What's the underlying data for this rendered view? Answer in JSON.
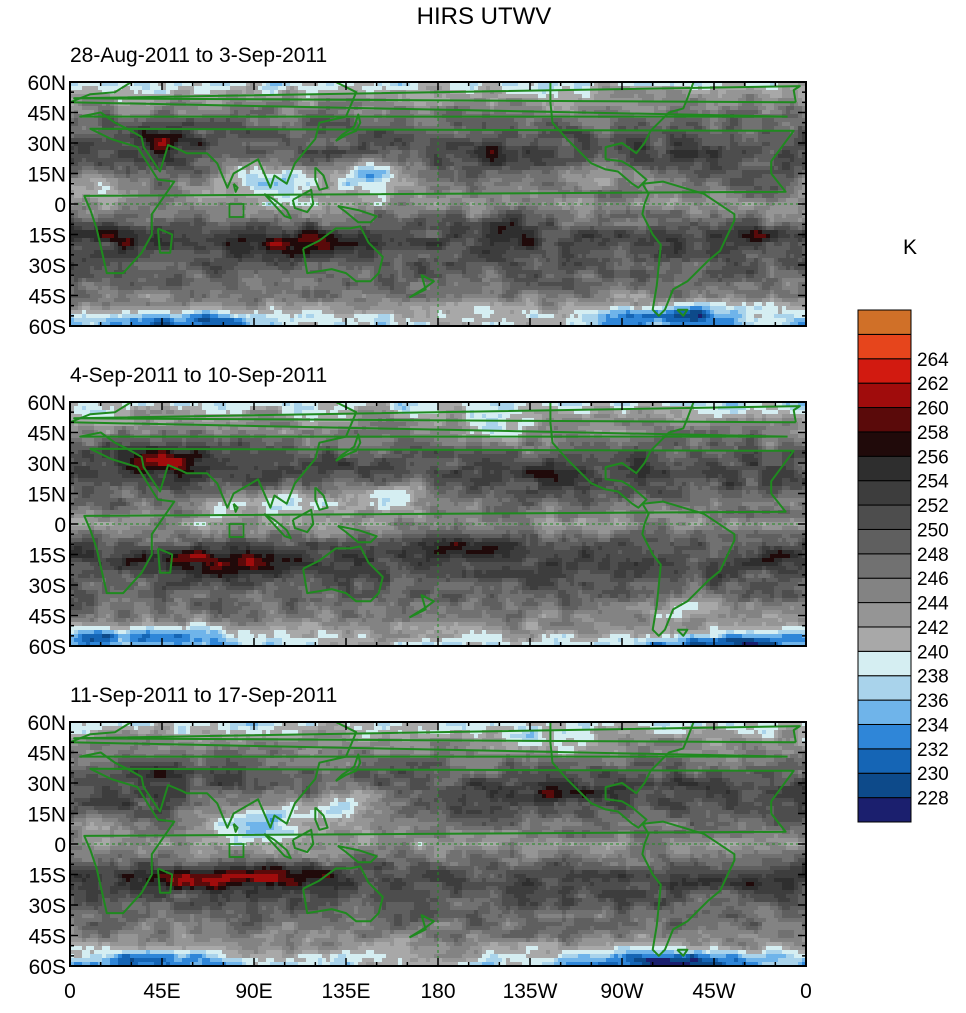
{
  "chart_data": {
    "type": "heatmap",
    "title": "HIRS UTWV",
    "colorbar": {
      "unit": "K",
      "levels": [
        228,
        230,
        232,
        234,
        236,
        238,
        240,
        242,
        244,
        246,
        248,
        250,
        252,
        254,
        256,
        258,
        260,
        262,
        264
      ],
      "colors": [
        "#1b1f6e",
        "#0d4a8a",
        "#1565b5",
        "#2f86d8",
        "#6fb4ea",
        "#a9d3eb",
        "#d5eef2",
        "#a8a8a8",
        "#959595",
        "#838383",
        "#717171",
        "#5f5f5f",
        "#4d4d4d",
        "#3d3d3d",
        "#2e2e2e",
        "#200a0a",
        "#5a0a0a",
        "#a00c0c",
        "#d21a10",
        "#e6451c",
        "#d07028"
      ]
    },
    "x_ticks": [
      "0",
      "45E",
      "90E",
      "135E",
      "180",
      "135W",
      "90W",
      "45W",
      "0"
    ],
    "y_ticks": [
      "60N",
      "45N",
      "30N",
      "15N",
      "0",
      "15S",
      "30S",
      "45S",
      "60S"
    ],
    "panels": [
      {
        "subtitle": "28-Aug-2011 to 3-Sep-2011"
      },
      {
        "subtitle": "4-Sep-2011 to 10-Sep-2011"
      },
      {
        "subtitle": "11-Sep-2011 to 17-Sep-2011"
      }
    ]
  }
}
